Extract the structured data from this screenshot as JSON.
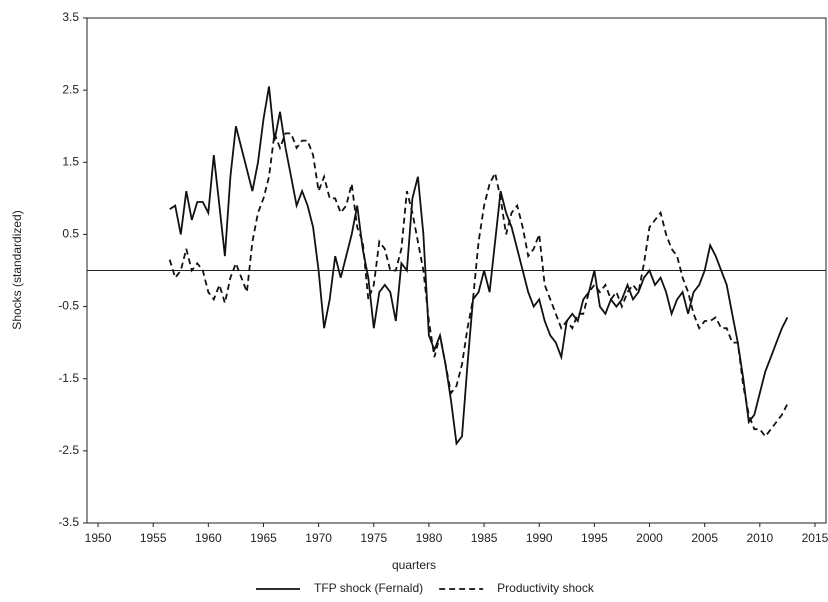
{
  "chart_data": {
    "type": "line",
    "x_label": "quarters",
    "y_label": "Shocks (standardized)",
    "x": [
      1956.5,
      1957,
      1957.5,
      1958,
      1958.5,
      1959,
      1959.5,
      1960,
      1960.5,
      1961,
      1961.5,
      1962,
      1962.5,
      1963,
      1963.5,
      1964,
      1964.5,
      1965,
      1965.5,
      1966,
      1966.5,
      1967,
      1967.5,
      1968,
      1968.5,
      1969,
      1969.5,
      1970,
      1970.5,
      1971,
      1971.5,
      1972,
      1972.5,
      1973,
      1973.5,
      1974,
      1974.5,
      1975,
      1975.5,
      1976,
      1976.5,
      1977,
      1977.5,
      1978,
      1978.5,
      1979,
      1979.5,
      1980,
      1980.5,
      1981,
      1981.5,
      1982,
      1982.5,
      1983,
      1983.5,
      1984,
      1984.5,
      1985,
      1985.5,
      1986,
      1986.5,
      1987,
      1987.5,
      1988,
      1988.5,
      1989,
      1989.5,
      1990,
      1990.5,
      1991,
      1991.5,
      1992,
      1992.5,
      1993,
      1993.5,
      1994,
      1994.5,
      1995,
      1995.5,
      1996,
      1996.5,
      1997,
      1997.5,
      1998,
      1998.5,
      1999,
      1999.5,
      2000,
      2000.5,
      2001,
      2001.5,
      2002,
      2002.5,
      2003,
      2003.5,
      2004,
      2004.5,
      2005,
      2005.5,
      2006,
      2006.5,
      2007,
      2007.5,
      2008,
      2008.5,
      2009,
      2009.5,
      2010,
      2010.5,
      2011,
      2011.5,
      2012,
      2012.5
    ],
    "series": [
      {
        "name": "TFP shock (Fernald)",
        "color": "#111111",
        "line_style": "solid",
        "values": [
          0.85,
          0.9,
          0.5,
          1.1,
          0.7,
          0.95,
          0.95,
          0.8,
          1.6,
          0.9,
          0.2,
          1.3,
          2.0,
          1.7,
          1.4,
          1.1,
          1.5,
          2.1,
          2.55,
          1.8,
          2.2,
          1.7,
          1.3,
          0.9,
          1.1,
          0.9,
          0.6,
          0.0,
          -0.8,
          -0.4,
          0.2,
          -0.1,
          0.2,
          0.5,
          0.9,
          0.3,
          -0.1,
          -0.8,
          -0.3,
          -0.2,
          -0.3,
          -0.7,
          0.1,
          0.0,
          1.0,
          1.3,
          0.5,
          -0.9,
          -1.1,
          -0.9,
          -1.3,
          -1.8,
          -2.4,
          -2.3,
          -1.3,
          -0.4,
          -0.3,
          0.0,
          -0.3,
          0.4,
          1.1,
          0.8,
          0.6,
          0.3,
          0.0,
          -0.3,
          -0.5,
          -0.4,
          -0.7,
          -0.9,
          -1.0,
          -1.2,
          -0.7,
          -0.6,
          -0.7,
          -0.4,
          -0.3,
          0.0,
          -0.5,
          -0.6,
          -0.4,
          -0.5,
          -0.4,
          -0.2,
          -0.4,
          -0.3,
          -0.1,
          0.0,
          -0.2,
          -0.1,
          -0.3,
          -0.6,
          -0.4,
          -0.3,
          -0.6,
          -0.3,
          -0.2,
          0.0,
          0.35,
          0.2,
          0.0,
          -0.2,
          -0.6,
          -1.0,
          -1.5,
          -2.1,
          -2.0,
          -1.7,
          -1.4,
          -1.2,
          -1.0,
          -0.8,
          -0.65
        ]
      },
      {
        "name": "Productivity shock",
        "color": "#111111",
        "line_style": "dashed",
        "values": [
          0.15,
          -0.1,
          0.0,
          0.3,
          0.0,
          0.1,
          0.0,
          -0.3,
          -0.4,
          -0.2,
          -0.45,
          -0.1,
          0.1,
          -0.1,
          -0.3,
          0.4,
          0.8,
          1.0,
          1.3,
          1.9,
          1.7,
          1.9,
          1.9,
          1.7,
          1.8,
          1.8,
          1.6,
          1.1,
          1.3,
          1.0,
          1.0,
          0.8,
          0.9,
          1.2,
          0.6,
          0.4,
          -0.4,
          -0.2,
          0.4,
          0.3,
          0.0,
          0.0,
          0.3,
          1.1,
          0.8,
          0.4,
          0.0,
          -0.7,
          -1.2,
          -0.9,
          -1.3,
          -1.7,
          -1.6,
          -1.3,
          -0.8,
          -0.4,
          0.4,
          0.9,
          1.2,
          1.35,
          1.0,
          0.5,
          0.8,
          0.9,
          0.6,
          0.2,
          0.3,
          0.5,
          -0.2,
          -0.4,
          -0.6,
          -0.8,
          -0.7,
          -0.8,
          -0.6,
          -0.6,
          -0.3,
          -0.2,
          -0.3,
          -0.2,
          -0.4,
          -0.3,
          -0.5,
          -0.3,
          -0.2,
          -0.3,
          0.1,
          0.6,
          0.7,
          0.8,
          0.5,
          0.3,
          0.2,
          -0.1,
          -0.3,
          -0.6,
          -0.8,
          -0.7,
          -0.7,
          -0.65,
          -0.8,
          -0.8,
          -1.0,
          -1.0,
          -1.6,
          -2.0,
          -2.2,
          -2.2,
          -2.3,
          -2.2,
          -2.1,
          -2.0,
          -1.85
        ]
      }
    ],
    "xlim": [
      1949,
      2016
    ],
    "xticks": [
      1950,
      1955,
      1960,
      1965,
      1970,
      1975,
      1980,
      1985,
      1990,
      1995,
      2000,
      2005,
      2010,
      2015
    ],
    "ylim": [
      -3.5,
      3.5
    ],
    "yticks": [
      3.5,
      2.5,
      1.5,
      0.5,
      -0.5,
      -1.5,
      -2.5,
      -3.5
    ],
    "zero_line": true,
    "grid": false,
    "legend": "bottom"
  }
}
